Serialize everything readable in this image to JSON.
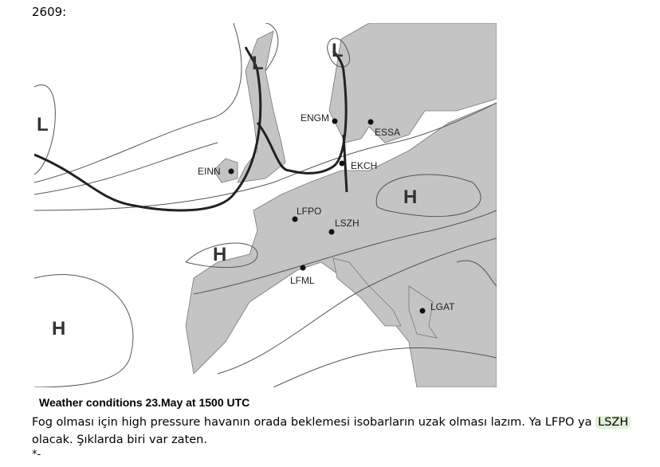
{
  "header": {
    "number": "2609:"
  },
  "map": {
    "pressure_labels": [
      "L",
      "L",
      "L",
      "H",
      "H",
      "H"
    ],
    "stations": [
      "ENGM",
      "ESSA",
      "EINN",
      "EKCH",
      "LFPO",
      "LSZH",
      "LFML",
      "LGAT"
    ]
  },
  "caption": "Weather  conditions 23.May at 1500 UTC",
  "note": {
    "before": "Fog olması için high pressure havanın orada beklemesi isobarların uzak olması lazım. Ya LFPO ya",
    "highlight": "LSZH",
    "after": "olacak. Şıklarda biri var zaten."
  },
  "footer": "*-"
}
